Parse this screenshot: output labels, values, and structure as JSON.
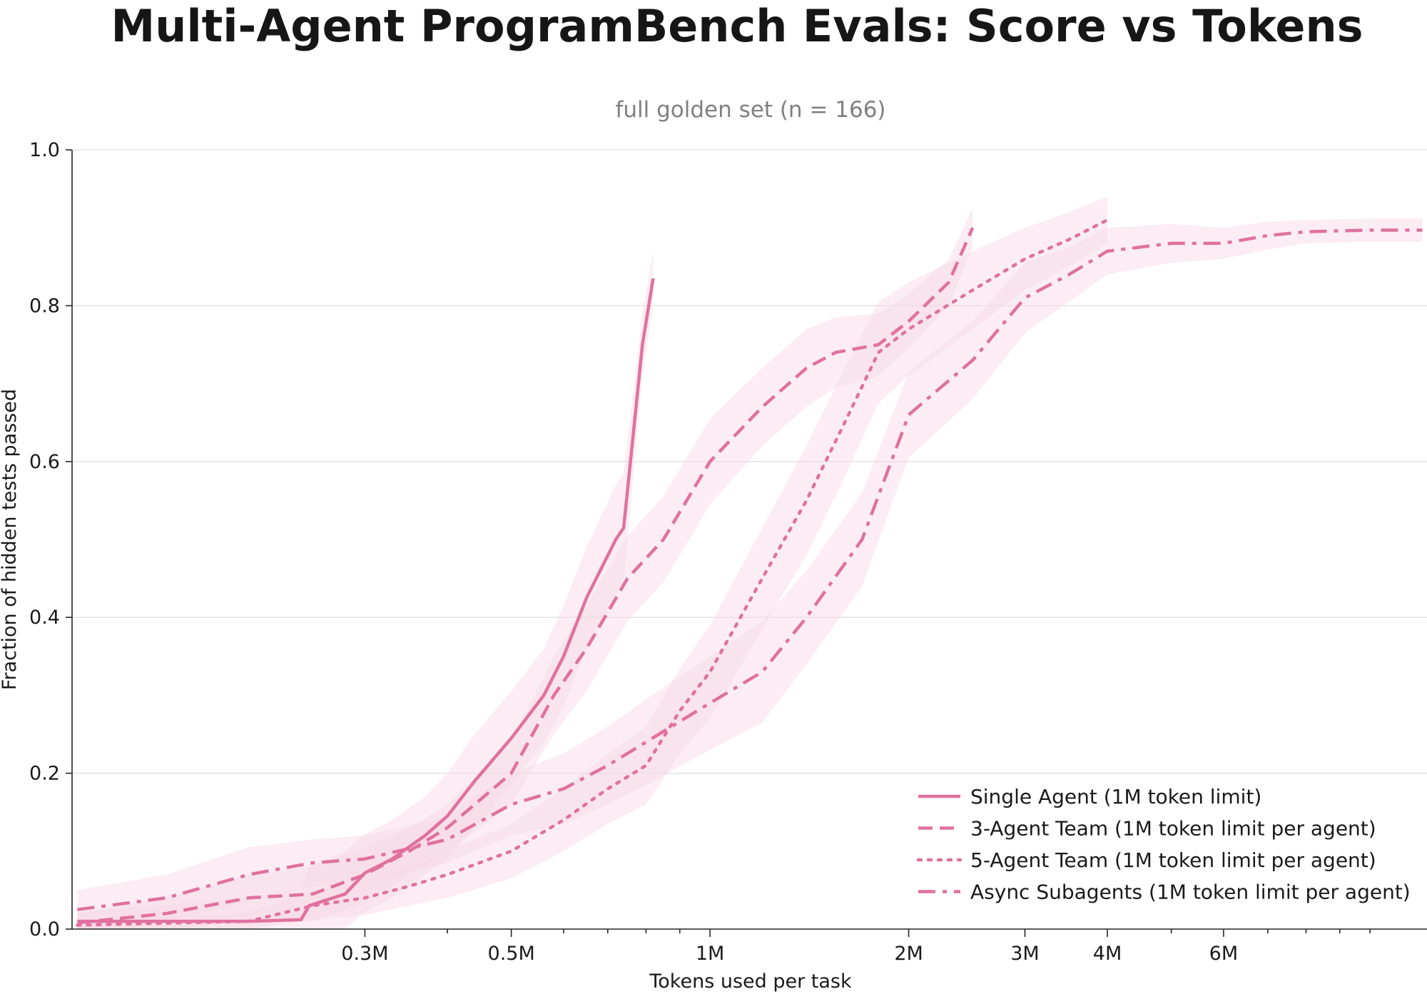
{
  "chart_data": {
    "type": "line",
    "title": "Multi-Agent ProgramBench Evals: Score vs Tokens",
    "subtitle": "full golden set (n = 166)",
    "xlabel": "Tokens used per task",
    "ylabel": "Fraction of hidden tests passed",
    "x_scale": "log",
    "xlim": [
      108000,
      12200000
    ],
    "ylim": [
      0.0,
      1.0
    ],
    "x_ticks": [
      {
        "value": 300000,
        "label": "0.3M"
      },
      {
        "value": 500000,
        "label": "0.5M"
      },
      {
        "value": 1000000,
        "label": "1M"
      },
      {
        "value": 2000000,
        "label": "2M"
      },
      {
        "value": 3000000,
        "label": "3M"
      },
      {
        "value": 4000000,
        "label": "4M"
      },
      {
        "value": 6000000,
        "label": "6M"
      }
    ],
    "x_minor_ticks": [
      400000,
      600000,
      700000,
      800000,
      900000,
      5000000,
      7000000,
      8000000,
      9000000,
      10000000
    ],
    "y_ticks": [
      {
        "value": 0.0,
        "label": "0.0"
      },
      {
        "value": 0.2,
        "label": "0.2"
      },
      {
        "value": 0.4,
        "label": "0.4"
      },
      {
        "value": 0.6,
        "label": "0.6"
      },
      {
        "value": 0.8,
        "label": "0.8"
      },
      {
        "value": 1.0,
        "label": "1.0"
      }
    ],
    "grid": "horizontal",
    "legend_position": "bottom-right",
    "series_color": "#e0719f",
    "band_color": "#f7d6e4",
    "series": [
      {
        "name": "Single Agent (1M token limit)",
        "style": "solid",
        "points": [
          [
            110000,
            0.01
          ],
          [
            200000,
            0.01
          ],
          [
            240000,
            0.012
          ],
          [
            247000,
            0.03
          ],
          [
            280000,
            0.045
          ],
          [
            300000,
            0.072
          ],
          [
            330000,
            0.09
          ],
          [
            370000,
            0.12
          ],
          [
            400000,
            0.145
          ],
          [
            440000,
            0.19
          ],
          [
            500000,
            0.245
          ],
          [
            560000,
            0.3
          ],
          [
            600000,
            0.35
          ],
          [
            650000,
            0.425
          ],
          [
            720000,
            0.5
          ],
          [
            740000,
            0.515
          ],
          [
            790000,
            0.75
          ],
          [
            820000,
            0.835
          ]
        ],
        "band": [
          0.012,
          0.03,
          0.04,
          0.05,
          0.055,
          0.05,
          0.05,
          0.05,
          0.055,
          0.06,
          0.06,
          0.06,
          0.065,
          0.065,
          0.07,
          0.07,
          0.04,
          0.035
        ]
      },
      {
        "name": "3-Agent Team (1M token limit per agent)",
        "style": "dashed",
        "points": [
          [
            110000,
            0.008
          ],
          [
            150000,
            0.02
          ],
          [
            200000,
            0.04
          ],
          [
            250000,
            0.045
          ],
          [
            300000,
            0.07
          ],
          [
            350000,
            0.1
          ],
          [
            400000,
            0.13
          ],
          [
            500000,
            0.2
          ],
          [
            580000,
            0.3
          ],
          [
            650000,
            0.36
          ],
          [
            750000,
            0.45
          ],
          [
            850000,
            0.5
          ],
          [
            1000000,
            0.6
          ],
          [
            1200000,
            0.67
          ],
          [
            1400000,
            0.72
          ],
          [
            1550000,
            0.74
          ],
          [
            1800000,
            0.75
          ],
          [
            2000000,
            0.78
          ],
          [
            2300000,
            0.83
          ],
          [
            2500000,
            0.9
          ]
        ],
        "band": [
          0.012,
          0.02,
          0.03,
          0.035,
          0.035,
          0.03,
          0.03,
          0.04,
          0.05,
          0.055,
          0.055,
          0.055,
          0.055,
          0.05,
          0.05,
          0.045,
          0.04,
          0.035,
          0.03,
          0.025
        ]
      },
      {
        "name": "5-Agent Team (1M token limit per agent)",
        "style": "dotted",
        "points": [
          [
            110000,
            0.005
          ],
          [
            200000,
            0.01
          ],
          [
            250000,
            0.03
          ],
          [
            300000,
            0.04
          ],
          [
            350000,
            0.055
          ],
          [
            400000,
            0.07
          ],
          [
            500000,
            0.1
          ],
          [
            600000,
            0.14
          ],
          [
            700000,
            0.18
          ],
          [
            800000,
            0.21
          ],
          [
            900000,
            0.28
          ],
          [
            1000000,
            0.33
          ],
          [
            1200000,
            0.45
          ],
          [
            1400000,
            0.55
          ],
          [
            1600000,
            0.65
          ],
          [
            1800000,
            0.74
          ],
          [
            2000000,
            0.77
          ],
          [
            2500000,
            0.82
          ],
          [
            3000000,
            0.86
          ],
          [
            3500000,
            0.885
          ],
          [
            4000000,
            0.91
          ]
        ],
        "band": [
          0.005,
          0.012,
          0.018,
          0.022,
          0.025,
          0.03,
          0.035,
          0.04,
          0.045,
          0.05,
          0.055,
          0.06,
          0.065,
          0.07,
          0.07,
          0.065,
          0.06,
          0.05,
          0.04,
          0.035,
          0.03
        ]
      },
      {
        "name": "Async Subagents (1M token limit per agent)",
        "style": "dashdot",
        "points": [
          [
            110000,
            0.025
          ],
          [
            150000,
            0.04
          ],
          [
            200000,
            0.07
          ],
          [
            250000,
            0.085
          ],
          [
            300000,
            0.09
          ],
          [
            400000,
            0.115
          ],
          [
            500000,
            0.16
          ],
          [
            600000,
            0.18
          ],
          [
            700000,
            0.21
          ],
          [
            800000,
            0.24
          ],
          [
            1000000,
            0.29
          ],
          [
            1200000,
            0.33
          ],
          [
            1400000,
            0.4
          ],
          [
            1700000,
            0.5
          ],
          [
            2000000,
            0.66
          ],
          [
            2500000,
            0.73
          ],
          [
            3000000,
            0.81
          ],
          [
            3500000,
            0.84
          ],
          [
            4000000,
            0.87
          ],
          [
            5000000,
            0.88
          ],
          [
            6000000,
            0.88
          ],
          [
            7000000,
            0.89
          ],
          [
            8000000,
            0.895
          ],
          [
            10000000,
            0.897
          ],
          [
            12000000,
            0.897
          ]
        ],
        "band": [
          0.025,
          0.03,
          0.035,
          0.03,
          0.03,
          0.03,
          0.04,
          0.045,
          0.05,
          0.055,
          0.06,
          0.065,
          0.06,
          0.06,
          0.055,
          0.05,
          0.045,
          0.035,
          0.03,
          0.025,
          0.02,
          0.018,
          0.015,
          0.015,
          0.015
        ]
      }
    ]
  }
}
